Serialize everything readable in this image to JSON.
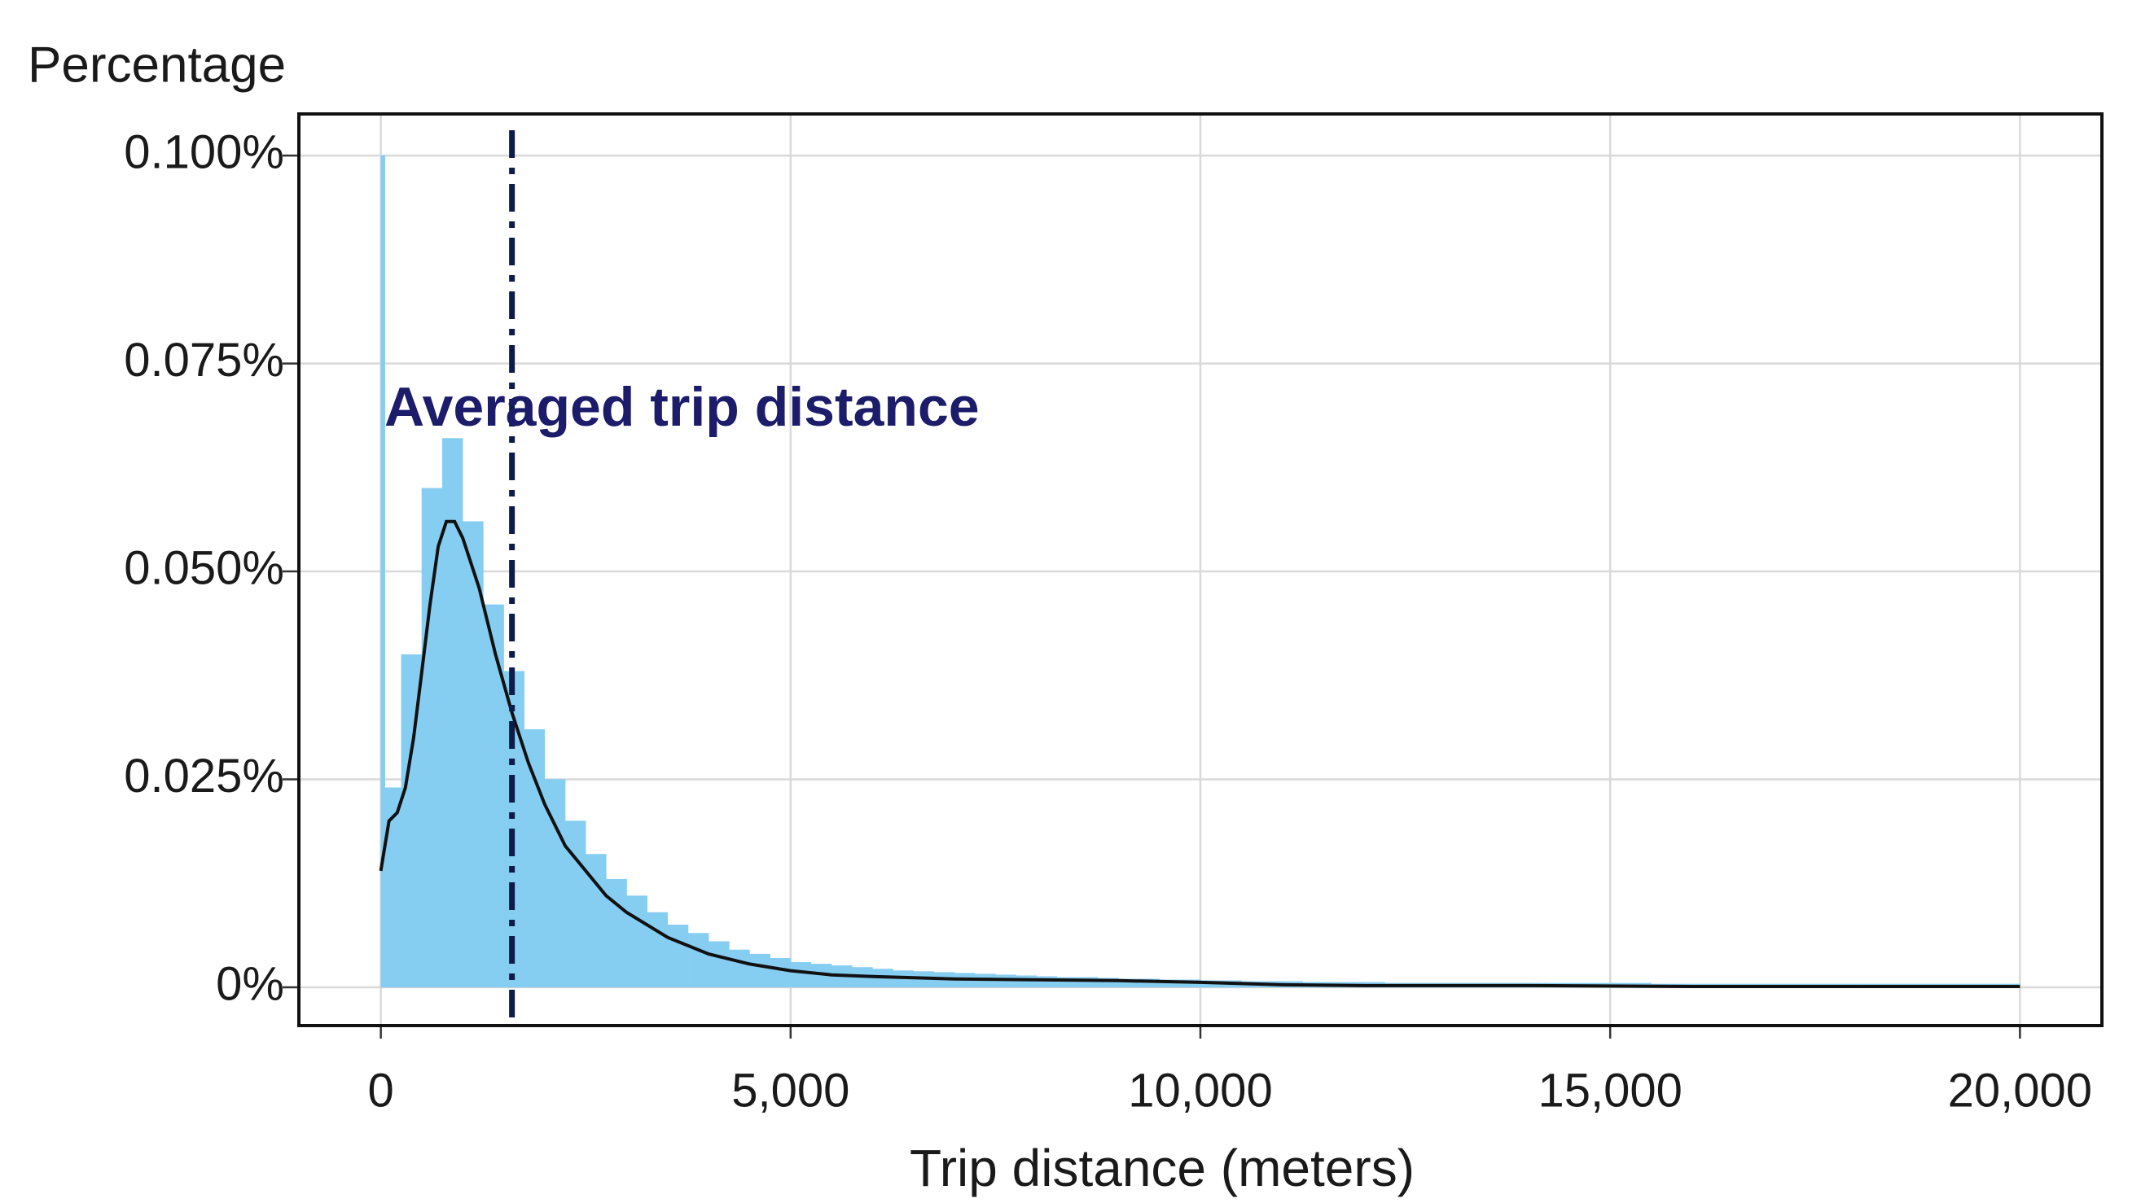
{
  "chart_data": {
    "type": "histogram",
    "y_label": "Percentage",
    "x_label": "Trip distance (meters)",
    "annotation": "Averaged trip distance",
    "mean_line": {
      "x": 1600,
      "color": "#0d1a4a"
    },
    "xlim": [
      -1000,
      21000
    ],
    "ylim": [
      -0.0046,
      0.105
    ],
    "xticks": [
      0,
      {
        "value": 5000,
        "label": "5,000"
      },
      {
        "value": 10000,
        "label": "10,000"
      },
      {
        "value": 15000,
        "label": "15,000"
      },
      {
        "value": 20000,
        "label": "20,000"
      }
    ],
    "yticks": [
      {
        "value": 0,
        "label": "0%"
      },
      {
        "value": 0.025,
        "label": "0.025%"
      },
      {
        "value": 0.05,
        "label": "0.050%"
      },
      {
        "value": 0.075,
        "label": "0.075%"
      },
      {
        "value": 0.1,
        "label": "0.100%"
      }
    ],
    "grid": true,
    "histogram": {
      "color": "#86cdf2",
      "bins": [
        0,
        50,
        250,
        500,
        750,
        1000,
        1250,
        1500,
        1750,
        2000,
        2250,
        2500,
        2750,
        3000,
        3250,
        3500,
        3750,
        4000,
        4250,
        4500,
        4750,
        5000,
        5250,
        5500,
        5750,
        6000,
        6250,
        6500,
        6750,
        7000,
        7250,
        7500,
        7750,
        8000,
        8250,
        8500,
        8750,
        9000,
        9250,
        9500,
        9750,
        10000,
        10250,
        10500,
        10750,
        11000,
        11250,
        11500,
        11750,
        12000,
        12250,
        12500,
        12750,
        13000,
        13250,
        13500,
        13750,
        14000,
        14250,
        14500,
        14750,
        15000,
        15250,
        15500,
        15750,
        16000,
        16250,
        16500,
        16750,
        17000,
        17250,
        17500,
        17750,
        18000,
        18250,
        18500,
        18750,
        19000,
        19250,
        19500,
        19750,
        20000
      ],
      "values": [
        0.1,
        0.024,
        0.04,
        0.06,
        0.066,
        0.056,
        0.046,
        0.038,
        0.031,
        0.025,
        0.02,
        0.016,
        0.013,
        0.011,
        0.009,
        0.0075,
        0.0065,
        0.0055,
        0.0045,
        0.004,
        0.0035,
        0.003,
        0.0028,
        0.0026,
        0.0024,
        0.0022,
        0.002,
        0.0019,
        0.0018,
        0.0017,
        0.0016,
        0.0015,
        0.0014,
        0.0013,
        0.0012,
        0.0012,
        0.0011,
        0.001,
        0.001,
        0.0009,
        0.0009,
        0.0008,
        0.0008,
        0.0007,
        0.0007,
        0.0007,
        0.0006,
        0.0006,
        0.0006,
        0.0006,
        0.0005,
        0.0005,
        0.0005,
        0.0005,
        0.0005,
        0.0005,
        0.0005,
        0.0005,
        0.0005,
        0.0005,
        0.0005,
        0.0005,
        0.0005,
        0.0004,
        0.0004,
        0.0004,
        0.0004,
        0.0004,
        0.0004,
        0.0004,
        0.0004,
        0.0004,
        0.0004,
        0.0004,
        0.0004,
        0.0004,
        0.0004,
        0.0004,
        0.0004,
        0.0004,
        0.0004
      ]
    },
    "density": {
      "color": "#111111",
      "x": [
        0,
        100,
        200,
        300,
        400,
        500,
        600,
        700,
        800,
        900,
        1000,
        1200,
        1400,
        1600,
        1800,
        2000,
        2250,
        2500,
        2750,
        3000,
        3500,
        4000,
        4500,
        5000,
        5500,
        6000,
        7000,
        8000,
        9000,
        10000,
        11000,
        12000,
        14000,
        16000,
        18000,
        20000
      ],
      "values": [
        0.014,
        0.02,
        0.021,
        0.024,
        0.03,
        0.038,
        0.046,
        0.053,
        0.056,
        0.056,
        0.054,
        0.048,
        0.04,
        0.033,
        0.027,
        0.022,
        0.017,
        0.014,
        0.011,
        0.009,
        0.006,
        0.004,
        0.0028,
        0.002,
        0.0015,
        0.0013,
        0.001,
        0.0009,
        0.0008,
        0.0006,
        0.0003,
        0.0002,
        0.0002,
        0.0001,
        0.0001,
        0.0001
      ]
    }
  }
}
